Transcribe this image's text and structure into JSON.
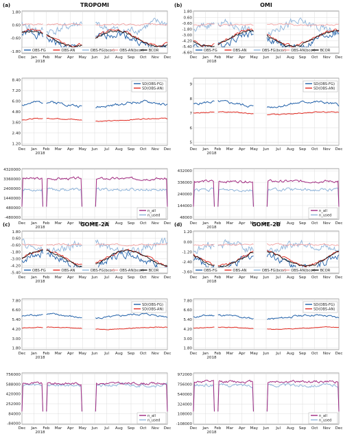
{
  "month_ticks": [
    "Dec",
    "Jan",
    "Feb",
    "Mar",
    "Apr",
    "May",
    "Jun",
    "Jul",
    "Aug",
    "Sep",
    "Oct",
    "Nov",
    "Dec"
  ],
  "year_label": "2018",
  "colors": {
    "obs_fg": "#1f5fa8",
    "obs_an": "#e0281f",
    "obs_fg_bcor": "#8db3d9",
    "obs_an_bcor": "#f2a0a0",
    "bcor": "#111111",
    "n_all": "#a0287f",
    "n_used": "#8db3d9"
  },
  "panels": [
    {
      "label": "(a)",
      "title": "TROPOMI",
      "charts": [
        {
          "kind": "dep",
          "yticks": [
            "1.80",
            "0.60",
            "-0.60",
            "-1.80"
          ],
          "ylim": [
            -2.0,
            1.9
          ],
          "seed": 1
        },
        {
          "kind": "sd",
          "yticks": [
            "8.40",
            "7.20",
            "6.00",
            "4.80",
            "3.60",
            "2.40",
            "1.20"
          ],
          "ylim": [
            1.0,
            8.6
          ],
          "fg": 5.6,
          "an": 3.9,
          "seed": 2
        },
        {
          "kind": "n",
          "yticks": [
            "4320000",
            "3360000",
            "2400000",
            "1440000",
            "480000",
            "-480000"
          ],
          "ylim": [
            -700000,
            4400000
          ],
          "all": 3400000,
          "used": 2300000,
          "seed": 3
        }
      ]
    },
    {
      "label": "(b)",
      "title": "OMI",
      "charts": [
        {
          "kind": "dep",
          "yticks": [
            "1.80",
            "0.60",
            "-0.60",
            "-1.80",
            "-3.00",
            "-4.20",
            "-5.40",
            "-6.60"
          ],
          "ylim": [
            -6.8,
            1.9
          ],
          "seed": 4
        },
        {
          "kind": "sd",
          "yticks": [
            "9",
            "8",
            "7",
            "6",
            "5"
          ],
          "ylim": [
            4.8,
            9.4
          ],
          "fg": 7.6,
          "an": 7.0,
          "seed": 5
        },
        {
          "kind": "n",
          "yticks": [
            "432000",
            "336000",
            "240000",
            "144000",
            "48000"
          ],
          "ylim": [
            30000,
            450000
          ],
          "all": 345000,
          "used": 275000,
          "seed": 6
        }
      ]
    },
    {
      "label": "(c)",
      "title": "GOME-2A",
      "charts": [
        {
          "kind": "dep",
          "yticks": [
            "1.80",
            "0.60",
            "-0.60",
            "-1.80",
            "-3.00",
            "-4.20",
            "-5.40"
          ],
          "ylim": [
            -5.6,
            1.9
          ],
          "seed": 7
        },
        {
          "kind": "sd",
          "yticks": [
            "7.80",
            "6.60",
            "5.40",
            "4.20",
            "3.00",
            "1.80"
          ],
          "ylim": [
            1.6,
            8.0
          ],
          "fg": 5.8,
          "an": 4.3,
          "seed": 8
        },
        {
          "kind": "n",
          "yticks": [
            "756000",
            "588000",
            "420000",
            "252000",
            "84000",
            "-84000"
          ],
          "ylim": [
            -100000,
            780000
          ],
          "all": 600000,
          "used": 570000,
          "seed": 9
        }
      ]
    },
    {
      "label": "(d)",
      "title": "GOME-2B",
      "charts": [
        {
          "kind": "dep",
          "yticks": [
            "1.20",
            "0.00",
            "-1.20",
            "-2.40",
            "-3.60"
          ],
          "ylim": [
            -3.8,
            1.3
          ],
          "seed": 10
        },
        {
          "kind": "sd",
          "yticks": [
            "7.80",
            "6.60",
            "5.40",
            "4.20",
            "3.00",
            "1.80"
          ],
          "ylim": [
            1.6,
            8.0
          ],
          "fg": 5.7,
          "an": 4.3,
          "seed": 11
        },
        {
          "kind": "n",
          "yticks": [
            "972000",
            "756000",
            "540000",
            "324000",
            "108000",
            "-108000"
          ],
          "ylim": [
            -120000,
            1000000
          ],
          "all": 810000,
          "used": 730000,
          "seed": 12
        }
      ]
    }
  ],
  "legends": {
    "dep": [
      "OBS-FG",
      "OBS-AN",
      "OBS-FG(bcor)",
      "OBS-AN(bcor)",
      "BCOR"
    ],
    "sd": [
      "SD(OBS-FG)",
      "SD(OBS-AN)"
    ],
    "n": [
      "n_all",
      "n_used"
    ]
  }
}
